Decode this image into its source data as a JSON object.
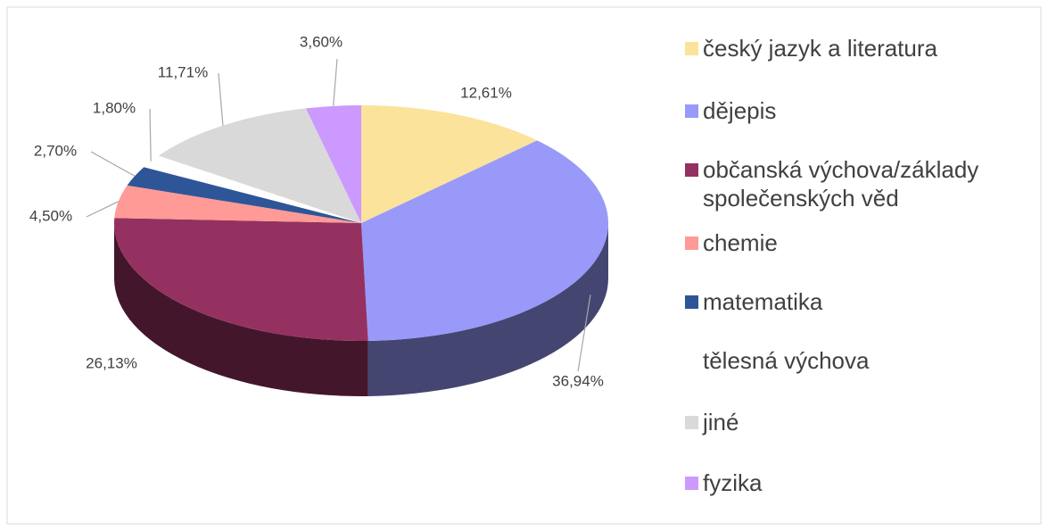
{
  "chart_data": {
    "type": "pie",
    "categories": [
      "český jazyk a literatura",
      "dějepis",
      "občanská výchova/základy společenských věd",
      "chemie",
      "matematika",
      "tělesná výchova",
      "jiné",
      "fyzika"
    ],
    "values": [
      12.61,
      36.94,
      26.13,
      4.5,
      2.7,
      1.8,
      11.71,
      3.6
    ],
    "value_labels": [
      "12,61%",
      "36,94%",
      "26,13%",
      "4,50%",
      "2,70%",
      "1,80%",
      "11,71%",
      "3,60%"
    ],
    "colors": [
      "#fbe39b",
      "#9999fa",
      "#953160",
      "#ff9a96",
      "#2e5597",
      "#ffffff",
      "#d9d9d9",
      "#cc99ff"
    ],
    "legend": "right"
  }
}
